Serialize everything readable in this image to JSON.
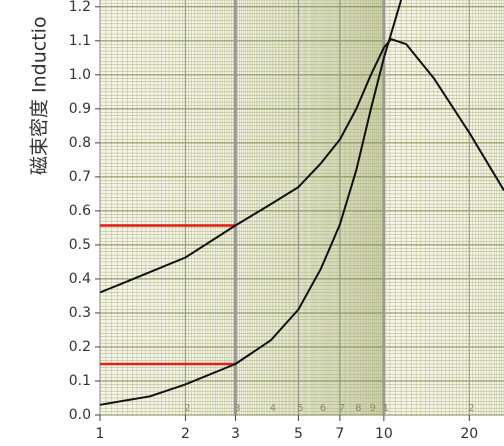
{
  "chart_data": {
    "type": "line",
    "xscale": "log",
    "ylabel": "磁束密度 Inductio",
    "xlim": [
      1,
      26.5
    ],
    "ylim": [
      0,
      1.22
    ],
    "xticks": [
      1,
      2,
      3,
      5,
      7,
      10,
      20
    ],
    "yticks": [
      {
        "value": 0,
        "label": "0.0"
      },
      {
        "value": 0.1,
        "label": "0.1"
      },
      {
        "value": 0.2,
        "label": "0.2"
      },
      {
        "value": 0.3,
        "label": "0.3"
      },
      {
        "value": 0.4,
        "label": "0.4"
      },
      {
        "value": 0.5,
        "label": "0.5"
      },
      {
        "value": 0.6,
        "label": "0.6"
      },
      {
        "value": 0.7,
        "label": "0.7"
      },
      {
        "value": 0.8,
        "label": "0.8"
      },
      {
        "value": 0.9,
        "label": "0.9"
      },
      {
        "value": 1.0,
        "label": "1.0"
      },
      {
        "value": 1.1,
        "label": "1.1"
      },
      {
        "value": 1.2,
        "label": "1.2"
      }
    ],
    "paper_labels": [
      2,
      3,
      4,
      5,
      6,
      7,
      8,
      9,
      {
        "value": 10,
        "label": "1"
      },
      {
        "value": 20,
        "label": "2"
      }
    ],
    "grid": true,
    "grid_color": "#a9b27a",
    "series": [
      {
        "color": "#111111",
        "x": [
          1,
          1.5,
          2,
          3,
          4,
          5,
          6,
          7,
          8,
          9,
          10,
          10.6,
          12,
          15,
          20,
          26.5
        ],
        "values": [
          0.36,
          0.42,
          0.463,
          0.557,
          0.62,
          0.67,
          0.74,
          0.81,
          0.9,
          1.0,
          1.08,
          1.105,
          1.09,
          0.99,
          0.83,
          0.66
        ]
      },
      {
        "color": "#111111",
        "x": [
          1,
          1.5,
          2,
          3,
          4,
          5,
          6,
          7,
          8,
          9,
          10,
          11,
          11.5
        ],
        "values": [
          0.03,
          0.055,
          0.09,
          0.15,
          0.22,
          0.31,
          0.43,
          0.56,
          0.72,
          0.9,
          1.05,
          1.165,
          1.22
        ]
      }
    ],
    "reference_lines": [
      {
        "y": 0.557,
        "x": [
          1,
          3
        ],
        "color": "#e0201a"
      },
      {
        "y": 0.15,
        "x": [
          1,
          3
        ],
        "color": "#e0201a"
      }
    ]
  }
}
